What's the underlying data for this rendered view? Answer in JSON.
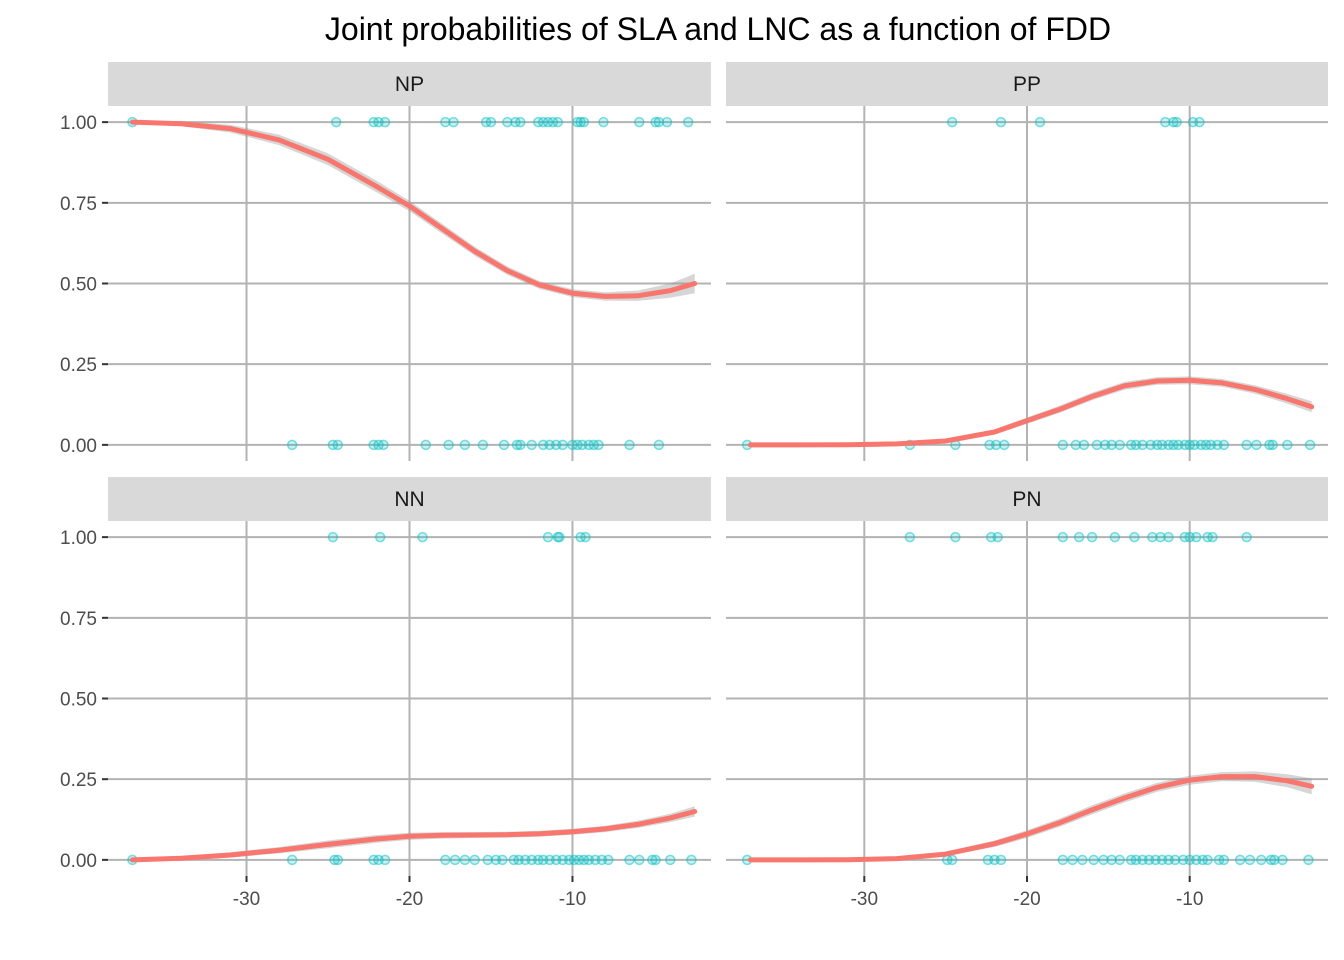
{
  "chart_data": {
    "type": "scatter",
    "title": "Joint probabilities of SLA and LNC as a function of FDD",
    "xlabel": "",
    "ylabel": "",
    "xlim": [
      -38.5,
      -1.5
    ],
    "ylim": [
      -0.05,
      1.05
    ],
    "x_ticks": [
      -30,
      -20,
      -10
    ],
    "x_tick_labels": [
      "-30",
      "-20",
      "-10"
    ],
    "y_ticks": [
      0,
      0.25,
      0.5,
      0.75,
      1
    ],
    "y_tick_labels": [
      "0.00",
      "0.25",
      "0.50",
      "0.75",
      "1.00"
    ],
    "grid": true,
    "legend": "none",
    "colors": {
      "points": "#00BFC4",
      "smooth_line": "#F8766D",
      "confidence_band": "#999999",
      "strip_background": "#D9D9D9",
      "grid": "#B3B3B3"
    },
    "panels": [
      {
        "name": "NP",
        "points_y1": [
          -37,
          -24.5,
          -22.2,
          -21.9,
          -21.5,
          -17.8,
          -17.3,
          -15.3,
          -15,
          -14,
          -13.5,
          -13.2,
          -12.1,
          -11.8,
          -11.5,
          -11.2,
          -10.9,
          -9.7,
          -9.5,
          -9.3,
          -8.1,
          -5.9,
          -4.9,
          -4.7,
          -4.2,
          -2.9
        ],
        "points_y0": [
          -27.2,
          -24.7,
          -24.4,
          -22.2,
          -21.9,
          -21.6,
          -19,
          -17.6,
          -16.6,
          -15.5,
          -14.2,
          -13.4,
          -13.2,
          -12.5,
          -11.8,
          -11.4,
          -11,
          -10.6,
          -10,
          -9.7,
          -9.4,
          -9,
          -8.7,
          -8.4,
          -6.5,
          -4.7
        ],
        "smooth": {
          "x": [
            -37,
            -34,
            -31,
            -28,
            -25,
            -22,
            -20,
            -18,
            -16,
            -14,
            -12,
            -10,
            -8,
            -6,
            -4,
            -2.5
          ],
          "y": [
            1,
            0.995,
            0.98,
            0.945,
            0.885,
            0.8,
            0.74,
            0.67,
            0.6,
            0.54,
            0.495,
            0.47,
            0.46,
            0.462,
            0.478,
            0.5
          ],
          "se": [
            0.004,
            0.008,
            0.012,
            0.016,
            0.018,
            0.018,
            0.016,
            0.015,
            0.014,
            0.013,
            0.012,
            0.012,
            0.013,
            0.016,
            0.022,
            0.03
          ]
        }
      },
      {
        "name": "PP",
        "points_y1": [
          -24.6,
          -21.6,
          -19.2,
          -11.5,
          -11,
          -10.8,
          -9.8,
          -9.4
        ],
        "points_y0": [
          -37.2,
          -27.2,
          -24.4,
          -22.3,
          -21.9,
          -21.4,
          -17.8,
          -17,
          -16.5,
          -15.7,
          -15.2,
          -14.8,
          -14.3,
          -13.6,
          -13.3,
          -12.9,
          -12.4,
          -12,
          -11.7,
          -11.3,
          -11,
          -10.7,
          -10.3,
          -10,
          -9.7,
          -9.3,
          -9,
          -8.7,
          -8.3,
          -7.9,
          -6.5,
          -5.9,
          -5.1,
          -4.9,
          -4,
          -2.6
        ],
        "smooth": {
          "x": [
            -37,
            -34,
            -31,
            -28,
            -25,
            -22,
            -20,
            -18,
            -16,
            -14,
            -12,
            -10,
            -8,
            -6,
            -4,
            -2.5
          ],
          "y": [
            0,
            0,
            0.0005,
            0.003,
            0.012,
            0.04,
            0.075,
            0.11,
            0.15,
            0.183,
            0.198,
            0.2,
            0.192,
            0.172,
            0.143,
            0.118
          ],
          "se": [
            0.001,
            0.001,
            0.002,
            0.003,
            0.005,
            0.008,
            0.01,
            0.011,
            0.012,
            0.012,
            0.012,
            0.012,
            0.012,
            0.013,
            0.015,
            0.017
          ]
        }
      },
      {
        "name": "NN",
        "points_y1": [
          -24.7,
          -21.8,
          -19.2,
          -11.5,
          -10.9,
          -10.8,
          -9.5,
          -9.2
        ],
        "points_y0": [
          -37,
          -27.2,
          -24.6,
          -24.4,
          -22.2,
          -21.9,
          -21.5,
          -17.8,
          -17.2,
          -16.6,
          -16,
          -15.2,
          -14.7,
          -14.3,
          -13.6,
          -13.3,
          -12.9,
          -12.5,
          -12.1,
          -11.8,
          -11.4,
          -11,
          -10.6,
          -10.2,
          -9.9,
          -9.6,
          -9.3,
          -9,
          -8.6,
          -8.2,
          -7.8,
          -6.5,
          -5.9,
          -5.1,
          -4.9,
          -4,
          -2.7
        ],
        "smooth": {
          "x": [
            -37,
            -34,
            -31,
            -28,
            -25,
            -22,
            -20,
            -18,
            -16,
            -14,
            -12,
            -10,
            -8,
            -6,
            -4,
            -2.5
          ],
          "y": [
            0,
            0.005,
            0.015,
            0.03,
            0.048,
            0.065,
            0.073,
            0.076,
            0.077,
            0.078,
            0.081,
            0.087,
            0.096,
            0.11,
            0.13,
            0.15
          ],
          "se": [
            0.004,
            0.006,
            0.008,
            0.01,
            0.012,
            0.012,
            0.011,
            0.01,
            0.009,
            0.009,
            0.009,
            0.009,
            0.01,
            0.011,
            0.013,
            0.016
          ]
        }
      },
      {
        "name": "PN",
        "points_y1": [
          -27.2,
          -24.4,
          -22.2,
          -21.8,
          -17.8,
          -16.8,
          -16,
          -14.6,
          -13.4,
          -12.3,
          -11.8,
          -11.3,
          -10.3,
          -10,
          -9.6,
          -8.9,
          -8.6,
          -6.5
        ],
        "points_y0": [
          -37.2,
          -24.9,
          -24.6,
          -22.4,
          -22,
          -21.6,
          -17.8,
          -17.2,
          -16.6,
          -15.9,
          -15.3,
          -14.8,
          -14.3,
          -13.6,
          -13.3,
          -12.9,
          -12.5,
          -12.1,
          -11.7,
          -11.3,
          -10.9,
          -10.4,
          -10,
          -9.6,
          -9.2,
          -8.9,
          -8.2,
          -7.9,
          -6.9,
          -6.3,
          -5.6,
          -5,
          -4.8,
          -4.3,
          -2.7
        ],
        "smooth": {
          "x": [
            -37,
            -34,
            -31,
            -28,
            -25,
            -22,
            -20,
            -18,
            -16,
            -14,
            -12,
            -10,
            -8,
            -6,
            -4,
            -2.5
          ],
          "y": [
            0,
            0,
            0.0005,
            0.004,
            0.018,
            0.05,
            0.08,
            0.115,
            0.155,
            0.192,
            0.225,
            0.247,
            0.258,
            0.258,
            0.245,
            0.228
          ],
          "se": [
            0.001,
            0.001,
            0.002,
            0.004,
            0.007,
            0.01,
            0.012,
            0.013,
            0.014,
            0.014,
            0.014,
            0.014,
            0.014,
            0.016,
            0.02,
            0.025
          ]
        }
      }
    ]
  }
}
